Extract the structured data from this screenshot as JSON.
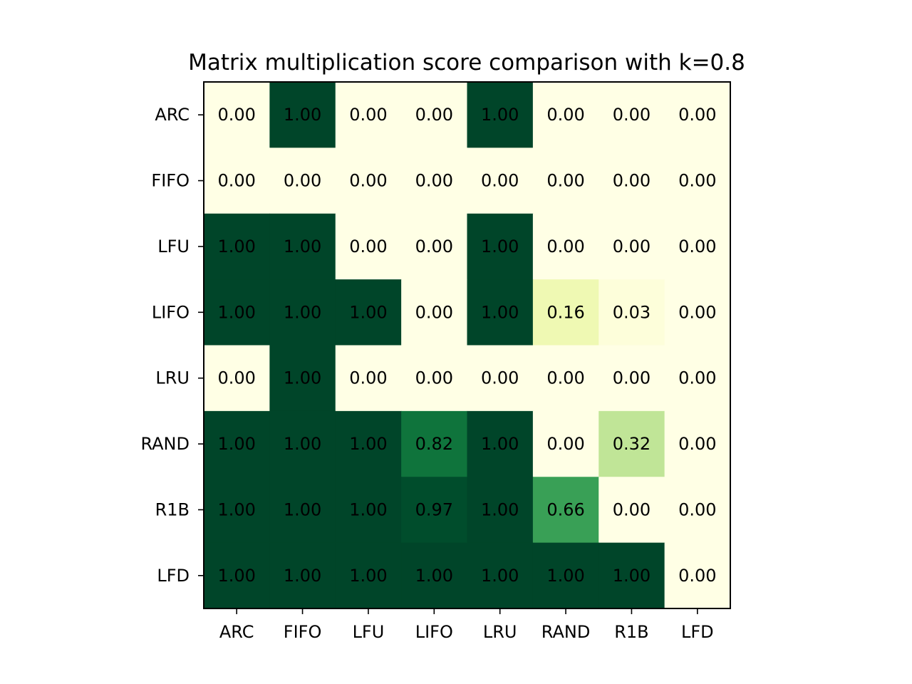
{
  "chart_data": {
    "type": "heatmap",
    "title": "Matrix multiplication score comparison with k=0.8",
    "xlabel": "",
    "ylabel": "",
    "x_categories": [
      "ARC",
      "FIFO",
      "LFU",
      "LIFO",
      "LRU",
      "RAND",
      "R1B",
      "LFD"
    ],
    "y_categories": [
      "ARC",
      "FIFO",
      "LFU",
      "LIFO",
      "LRU",
      "RAND",
      "R1B",
      "LFD"
    ],
    "values": [
      [
        0.0,
        1.0,
        0.0,
        0.0,
        1.0,
        0.0,
        0.0,
        0.0
      ],
      [
        0.0,
        0.0,
        0.0,
        0.0,
        0.0,
        0.0,
        0.0,
        0.0
      ],
      [
        1.0,
        1.0,
        0.0,
        0.0,
        1.0,
        0.0,
        0.0,
        0.0
      ],
      [
        1.0,
        1.0,
        1.0,
        0.0,
        1.0,
        0.16,
        0.03,
        0.0
      ],
      [
        0.0,
        1.0,
        0.0,
        0.0,
        0.0,
        0.0,
        0.0,
        0.0
      ],
      [
        1.0,
        1.0,
        1.0,
        0.82,
        1.0,
        0.0,
        0.32,
        0.0
      ],
      [
        1.0,
        1.0,
        1.0,
        0.97,
        1.0,
        0.66,
        0.0,
        0.0
      ],
      [
        1.0,
        1.0,
        1.0,
        1.0,
        1.0,
        1.0,
        1.0,
        0.0
      ]
    ],
    "value_range": [
      0,
      1
    ],
    "value_format": "0.00",
    "colormap": "YlGn",
    "colormap_stops": [
      "#ffffe5",
      "#f7fcb9",
      "#d9f0a3",
      "#addd8e",
      "#78c679",
      "#41ab5d",
      "#238443",
      "#006837",
      "#004529"
    ],
    "grid": false,
    "legend": "none"
  }
}
